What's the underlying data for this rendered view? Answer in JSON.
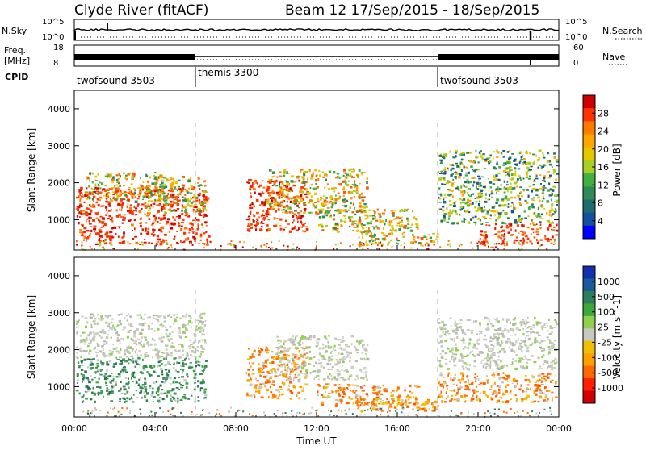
{
  "header": {
    "station": "Clyde River (fitACF)",
    "beam_info": "Beam 12  17/Sep/2015 - 18/Sep/2015"
  },
  "panels": {
    "nsky_label": "N.Sky",
    "nsky_ticks": [
      "10^5",
      "10^0"
    ],
    "nsearch_label": "N.Search",
    "nsearch_ticks": [
      "10^5",
      "10^0"
    ],
    "freq_label": "Freq.",
    "freq_unit": "[MHz]",
    "freq_ticks": [
      "18",
      "8"
    ],
    "nave_label": "Nave",
    "nave_ticks": [
      "60",
      "0"
    ],
    "cpid_label": "CPID",
    "cpid_segments": [
      {
        "label": "twofsound 3503",
        "start": 0,
        "end": 6
      },
      {
        "label": "themis 3300",
        "start": 6,
        "end": 18
      },
      {
        "label": "twofsound 3503",
        "start": 18,
        "end": 24
      }
    ]
  },
  "colorbars": {
    "power": {
      "label": "Power [dB]",
      "ticks": [
        "28",
        "24",
        "20",
        "16",
        "12",
        "8",
        "4"
      ],
      "colors": [
        "#cc0000",
        "#ff3300",
        "#ff7a00",
        "#ffa500",
        "#e6c800",
        "#a8d020",
        "#40b040",
        "#2e8b57",
        "#1a6e6e",
        "#1450a0",
        "#0000ff"
      ]
    },
    "velocity": {
      "label": "Velocity [m s^-1]",
      "ticks": [
        "1000",
        "500",
        "100",
        "25",
        "-25",
        "-100",
        "-500",
        "-1000"
      ],
      "colors": [
        "#1030b0",
        "#1a5a9a",
        "#2e7d5b",
        "#3aa83a",
        "#8fd14f",
        "#c8c8c0",
        "#f0c000",
        "#ffa000",
        "#ff6a00",
        "#ff2000",
        "#d00000"
      ]
    }
  },
  "chart_data": {
    "type": "heatmap",
    "xlabel": "Time UT",
    "ylabel": "Slant Range [km]",
    "x_tick_labels": [
      "00:00",
      "04:00",
      "08:00",
      "12:00",
      "16:00",
      "20:00",
      "00:00"
    ],
    "x_range_hours": [
      0,
      24
    ],
    "y_range_km": [
      180,
      4500
    ],
    "y_tick_values": [
      1000,
      2000,
      3000,
      4000
    ],
    "y_tick_labels": [
      "1000",
      "2000",
      "3000",
      "4000"
    ],
    "cpid_change_hours": [
      6,
      18
    ],
    "power_panel_bands": [
      {
        "t0": 0.0,
        "t1": 6.6,
        "r0": 350,
        "r1": 1900,
        "level": "high"
      },
      {
        "t0": 0.5,
        "t1": 4.5,
        "r0": 1500,
        "r1": 2300,
        "level": "mid"
      },
      {
        "t0": 3.5,
        "t1": 6.5,
        "r0": 1200,
        "r1": 2200,
        "level": "mid"
      },
      {
        "t0": 8.5,
        "t1": 11.5,
        "r0": 700,
        "r1": 2100,
        "level": "high"
      },
      {
        "t0": 9.5,
        "t1": 14.5,
        "r0": 1200,
        "r1": 2400,
        "level": "mid"
      },
      {
        "t0": 12.0,
        "t1": 17.0,
        "r0": 700,
        "r1": 1300,
        "level": "mid"
      },
      {
        "t0": 14.0,
        "t1": 18.0,
        "r0": 350,
        "r1": 700,
        "level": "mid"
      },
      {
        "t0": 18.0,
        "t1": 24.0,
        "r0": 900,
        "r1": 2900,
        "level": "low"
      },
      {
        "t0": 20.0,
        "t1": 24.0,
        "r0": 350,
        "r1": 900,
        "level": "high"
      }
    ],
    "velocity_panel_bands": [
      {
        "t0": 0.0,
        "t1": 6.5,
        "r0": 600,
        "r1": 1800,
        "level": "positive"
      },
      {
        "t0": 0.0,
        "t1": 6.5,
        "r0": 1800,
        "r1": 3000,
        "level": "near-zero"
      },
      {
        "t0": 8.5,
        "t1": 11.5,
        "r0": 700,
        "r1": 2100,
        "level": "negative"
      },
      {
        "t0": 10.0,
        "t1": 14.5,
        "r0": 1200,
        "r1": 2400,
        "level": "near-zero"
      },
      {
        "t0": 12.0,
        "t1": 17.0,
        "r0": 500,
        "r1": 1100,
        "level": "negative"
      },
      {
        "t0": 14.0,
        "t1": 18.0,
        "r0": 350,
        "r1": 700,
        "level": "negative"
      },
      {
        "t0": 18.0,
        "t1": 24.0,
        "r0": 1500,
        "r1": 2900,
        "level": "near-zero"
      },
      {
        "t0": 18.0,
        "t1": 24.0,
        "r0": 600,
        "r1": 1400,
        "level": "negative"
      }
    ]
  }
}
